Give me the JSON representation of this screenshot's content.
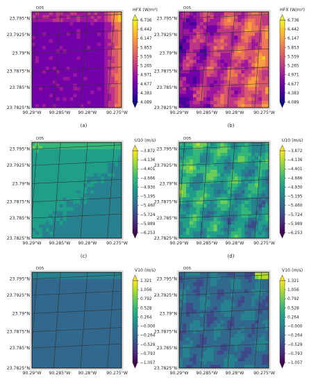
{
  "figure": {
    "panels": [
      {
        "id": "a",
        "caption": "(a)",
        "domain_label": "D05",
        "colorbar_title": "HFX (W/m²)",
        "colormap": "plasma",
        "texture": "smooth",
        "tick_labels": [
          "6.736",
          "6.442",
          "6.147",
          "5.853",
          "5.559",
          "5.265",
          "4.971",
          "4.677",
          "4.383",
          "4.089"
        ]
      },
      {
        "id": "b",
        "caption": "(b)",
        "domain_label": "D05",
        "colorbar_title": "HFX (W/m²)",
        "colormap": "plasma",
        "texture": "turbulent",
        "tick_labels": [
          "6.736",
          "6.442",
          "6.147",
          "5.853",
          "5.559",
          "5.265",
          "4.971",
          "4.677",
          "4.383",
          "4.089"
        ]
      },
      {
        "id": "c",
        "caption": "(c)",
        "domain_label": "D05",
        "colorbar_title": "U10 (m/s)",
        "colormap": "viridis",
        "texture": "smooth",
        "tick_labels": [
          "−3.872",
          "−4.136",
          "−4.401",
          "−4.666",
          "−4.930",
          "−5.195",
          "−5.460",
          "−5.724",
          "−5.989",
          "−6.253"
        ]
      },
      {
        "id": "d",
        "caption": "(d)",
        "domain_label": "D05",
        "colorbar_title": "U10 (m/s)",
        "colormap": "viridis",
        "texture": "turbulent",
        "tick_labels": [
          "−3.872",
          "−4.136",
          "−4.401",
          "−4.666",
          "−4.930",
          "−5.195",
          "−5.460",
          "−5.724",
          "−5.989",
          "−6.253"
        ]
      },
      {
        "id": "e",
        "caption": "(e)",
        "domain_label": "D05",
        "colorbar_title": "V10 (m/s)",
        "colormap": "viridis",
        "texture": "smooth",
        "tick_labels": [
          "1.321",
          "1.056",
          "0.792",
          "0.528",
          "0.264",
          "−0.000",
          "−0.264",
          "−0.529",
          "−0.793",
          "−1.057"
        ]
      },
      {
        "id": "f",
        "caption": "(f)",
        "domain_label": "D05",
        "colorbar_title": "V10 (m/s)",
        "colormap": "viridis",
        "texture": "turbulent",
        "tick_labels": [
          "1.321",
          "1.056",
          "0.792",
          "0.528",
          "0.264",
          "−0.000",
          "−0.264",
          "−0.529",
          "−0.793",
          "−1.057"
        ]
      }
    ],
    "lat_labels": [
      "23.795°N",
      "23.7925°N",
      "23.79°N",
      "23.7875°N",
      "23.785°N",
      "23.7825°N"
    ],
    "lon_labels": [
      "90.29°W",
      "90.285°W",
      "90.28°W",
      "90.275°W"
    ]
  },
  "chart_data": [
    {
      "type": "heatmap",
      "panel": "a",
      "colorbar_label": "HFX (W/m²)",
      "xlabel": "",
      "ylabel": "",
      "x_ticks": [
        "90.29°W",
        "90.285°W",
        "90.28°W",
        "90.275°W"
      ],
      "y_ticks": [
        "23.795°N",
        "23.7925°N",
        "23.79°N",
        "23.7875°N",
        "23.785°N",
        "23.7825°N"
      ],
      "value_range": [
        4.089,
        6.736
      ],
      "colormap": "plasma",
      "pattern": "mostly ~5.0 W/m² with higher values (~6.5) along the eastern edge",
      "colorbar_ticks": [
        6.736,
        6.442,
        6.147,
        5.853,
        5.559,
        5.265,
        4.971,
        4.677,
        4.383,
        4.089
      ]
    },
    {
      "type": "heatmap",
      "panel": "b",
      "colorbar_label": "HFX (W/m²)",
      "xlabel": "",
      "ylabel": "",
      "x_ticks": [
        "90.29°W",
        "90.285°W",
        "90.28°W",
        "90.275°W"
      ],
      "y_ticks": [
        "23.795°N",
        "23.7925°N",
        "23.79°N",
        "23.7875°N",
        "23.785°N",
        "23.7825°N"
      ],
      "value_range": [
        4.089,
        6.736
      ],
      "colormap": "plasma",
      "pattern": "turbulent streaks ~4.7–6.2 W/m², highest toward the east",
      "colorbar_ticks": [
        6.736,
        6.442,
        6.147,
        5.853,
        5.559,
        5.265,
        4.971,
        4.677,
        4.383,
        4.089
      ]
    },
    {
      "type": "heatmap",
      "panel": "c",
      "colorbar_label": "U10 (m/s)",
      "xlabel": "",
      "ylabel": "",
      "x_ticks": [
        "90.29°W",
        "90.285°W",
        "90.28°W",
        "90.275°W"
      ],
      "y_ticks": [
        "23.795°N",
        "23.7925°N",
        "23.79°N",
        "23.7875°N",
        "23.785°N",
        "23.7825°N"
      ],
      "value_range": [
        -6.253,
        -3.872
      ],
      "colormap": "viridis",
      "pattern": "smooth ~-4.6 m/s, slightly stronger toward the south-east",
      "colorbar_ticks": [
        -3.872,
        -4.136,
        -4.401,
        -4.666,
        -4.93,
        -5.195,
        -5.46,
        -5.724,
        -5.989,
        -6.253
      ]
    },
    {
      "type": "heatmap",
      "panel": "d",
      "colorbar_label": "U10 (m/s)",
      "xlabel": "",
      "ylabel": "",
      "x_ticks": [
        "90.29°W",
        "90.285°W",
        "90.28°W",
        "90.275°W"
      ],
      "y_ticks": [
        "23.795°N",
        "23.7925°N",
        "23.79°N",
        "23.7875°N",
        "23.785°N",
        "23.7825°N"
      ],
      "value_range": [
        -6.253,
        -3.872
      ],
      "colormap": "viridis",
      "pattern": "turbulent streaks ~-4.1 to -5.2 m/s",
      "colorbar_ticks": [
        -3.872,
        -4.136,
        -4.401,
        -4.666,
        -4.93,
        -5.195,
        -5.46,
        -5.724,
        -5.989,
        -6.253
      ]
    },
    {
      "type": "heatmap",
      "panel": "e",
      "colorbar_label": "V10 (m/s)",
      "xlabel": "",
      "ylabel": "",
      "x_ticks": [
        "90.29°W",
        "90.285°W",
        "90.28°W",
        "90.275°W"
      ],
      "y_ticks": [
        "23.795°N",
        "23.7925°N",
        "23.79°N",
        "23.7875°N",
        "23.785°N",
        "23.7825°N"
      ],
      "value_range": [
        -1.057,
        1.321
      ],
      "colormap": "viridis",
      "pattern": "nearly uniform ~0.0 m/s",
      "colorbar_ticks": [
        1.321,
        1.056,
        0.792,
        0.528,
        0.264,
        0.0,
        -0.264,
        -0.529,
        -0.793,
        -1.057
      ]
    },
    {
      "type": "heatmap",
      "panel": "f",
      "colorbar_label": "V10 (m/s)",
      "xlabel": "",
      "ylabel": "",
      "x_ticks": [
        "90.29°W",
        "90.285°W",
        "90.28°W",
        "90.275°W"
      ],
      "y_ticks": [
        "23.795°N",
        "23.7925°N",
        "23.79°N",
        "23.7875°N",
        "23.785°N",
        "23.7825°N"
      ],
      "value_range": [
        -1.057,
        1.321
      ],
      "colormap": "viridis",
      "pattern": "turbulent ~-0.3 to 0.3 m/s",
      "colorbar_ticks": [
        1.321,
        1.056,
        0.792,
        0.528,
        0.264,
        0.0,
        -0.264,
        -0.529,
        -0.793,
        -1.057
      ]
    }
  ]
}
